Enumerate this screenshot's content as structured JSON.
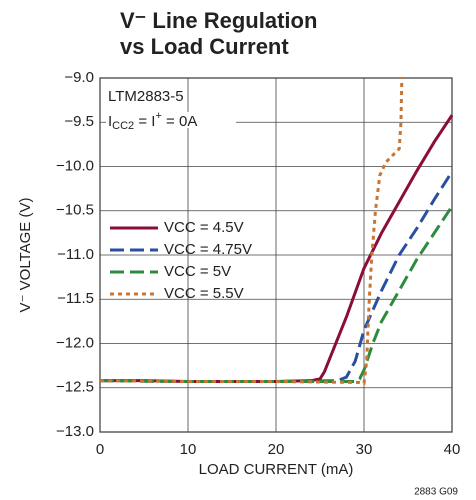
{
  "chart_data": {
    "type": "line",
    "title": [
      "V⁻ Line Regulation",
      "vs Load Current"
    ],
    "x_label": "LOAD CURRENT (mA)",
    "y_label": "V⁻ VOLTAGE (V)",
    "annotations": [
      "LTM2883-5",
      [
        "I",
        "CC2",
        " = I",
        "+",
        " = 0A"
      ]
    ],
    "footnote": "2883 G09",
    "xlim": [
      0,
      40
    ],
    "xticks": [
      0,
      10,
      20,
      30,
      40
    ],
    "ylim": [
      -13,
      -9
    ],
    "yticks": [
      {
        "value": -9,
        "label": "−9.0"
      },
      {
        "value": -9.5,
        "label": "−9.5"
      },
      {
        "value": -10,
        "label": "−10.0"
      },
      {
        "value": -10.5,
        "label": "−10.5"
      },
      {
        "value": -11,
        "label": "−11.0"
      },
      {
        "value": -11.5,
        "label": "−11.5"
      },
      {
        "value": -12,
        "label": "−12.0"
      },
      {
        "value": -12.5,
        "label": "−12.5"
      },
      {
        "value": -13,
        "label": "−13.0"
      }
    ],
    "grid": true,
    "legend": "left",
    "series": [
      {
        "name": "VCC = 4.5V",
        "color": "#8b0d3a",
        "dash": "solid",
        "x": [
          0,
          5,
          10,
          15,
          20,
          24,
          25,
          25.5,
          28,
          30,
          32,
          34,
          36,
          38,
          40
        ],
        "values": [
          -12.42,
          -12.42,
          -12.43,
          -12.43,
          -12.43,
          -12.42,
          -12.4,
          -12.32,
          -11.7,
          -11.15,
          -10.75,
          -10.4,
          -10.05,
          -9.72,
          -9.42
        ]
      },
      {
        "name": "VCC = 4.75V",
        "color": "#2a4fa0",
        "dash": "dashed",
        "x": [
          0,
          10,
          20,
          27,
          28,
          29,
          30,
          32,
          34,
          36,
          38,
          40
        ],
        "values": [
          -12.42,
          -12.43,
          -12.43,
          -12.42,
          -12.38,
          -12.2,
          -11.85,
          -11.4,
          -11.0,
          -10.7,
          -10.37,
          -10.06
        ]
      },
      {
        "name": "VCC = 5V",
        "color": "#2e8b3e",
        "dash": "dashed",
        "x": [
          0,
          10,
          20,
          29,
          29.5,
          30,
          31,
          32,
          34,
          36,
          38,
          40
        ],
        "values": [
          -12.42,
          -12.43,
          -12.43,
          -12.43,
          -12.4,
          -12.3,
          -12.0,
          -11.75,
          -11.4,
          -11.05,
          -10.75,
          -10.45
        ]
      },
      {
        "name": "VCC = 5.5V",
        "color": "#c87533",
        "dash": "dotted",
        "x": [
          0,
          10,
          20,
          29.5,
          30,
          30.3,
          30.6,
          30.9,
          31.3,
          31.8,
          32.5,
          33.5,
          34,
          34.2,
          34.3
        ],
        "values": [
          -12.42,
          -12.43,
          -12.43,
          -12.44,
          -12.45,
          -12.2,
          -11.5,
          -11.0,
          -10.5,
          -10.1,
          -9.95,
          -9.85,
          -9.8,
          -9.5,
          -9.0
        ]
      }
    ]
  }
}
